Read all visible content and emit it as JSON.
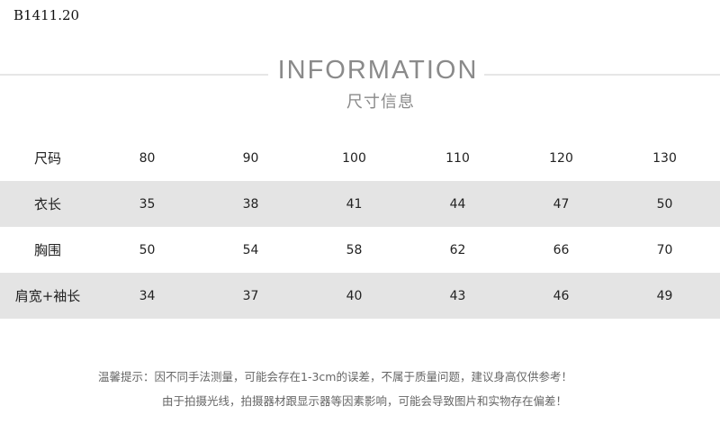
{
  "product_code": "B1411.20",
  "header": {
    "title": "INFORMATION",
    "subtitle": "尺寸信息"
  },
  "table": {
    "rows": [
      {
        "label": "尺码",
        "values": [
          "80",
          "90",
          "100",
          "110",
          "120",
          "130"
        ],
        "shaded": false
      },
      {
        "label": "衣长",
        "values": [
          "35",
          "38",
          "41",
          "44",
          "47",
          "50"
        ],
        "shaded": true
      },
      {
        "label": "胸围",
        "values": [
          "50",
          "54",
          "58",
          "62",
          "66",
          "70"
        ],
        "shaded": false
      },
      {
        "label": "肩宽+袖长",
        "values": [
          "34",
          "37",
          "40",
          "43",
          "46",
          "49"
        ],
        "shaded": true
      }
    ]
  },
  "notes": [
    "温馨提示：因不同手法测量，可能会存在1-3cm的误差，不属于质量问题，建议身高仅供参考！",
    "由于拍摄光线，拍摄器材跟显示器等因素影响，可能会导致图片和实物存在偏差！"
  ],
  "colors": {
    "shaded_row": "#e4e4e4",
    "title": "#8a8a8a"
  }
}
